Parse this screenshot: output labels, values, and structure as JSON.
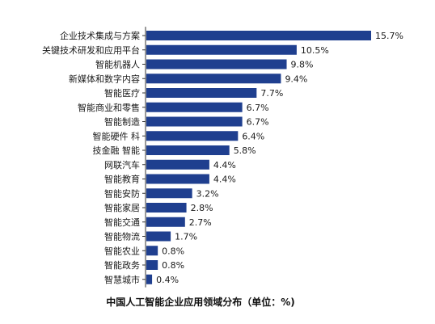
{
  "chart_data": {
    "type": "bar",
    "orientation": "horizontal",
    "title": "中国人工智能企业应用领域分布（单位：%)",
    "categories": [
      "企业技术集成与方案",
      "关键技术研发和应用平台",
      "智能机器人",
      "新媒体和数字内容",
      "智能医疗",
      "智能商业和零售",
      "智能制造",
      "智能硬件 科",
      "技金融 智能",
      "网联汽车",
      "智能教育",
      "智能安防",
      "智能家居",
      "智能交通",
      "智能物流",
      "智能农业",
      "智能政务",
      "智慧城市"
    ],
    "values": [
      15.7,
      10.5,
      9.8,
      9.4,
      7.7,
      6.7,
      6.7,
      6.4,
      5.8,
      4.4,
      4.4,
      3.2,
      2.8,
      2.7,
      1.7,
      0.8,
      0.8,
      0.4
    ],
    "value_labels": [
      "15.7%",
      "10.5%",
      "9.8%",
      "9.4%",
      "7.7%",
      "6.7%",
      "6.7%",
      "6.4%",
      "5.8%",
      "4.4%",
      "4.4%",
      "3.2%",
      "2.8%",
      "2.7%",
      "1.7%",
      "0.8%",
      "0.8%",
      "0.4%"
    ],
    "xlim": [
      0,
      15.7
    ],
    "bar_color": "#1f3f8f",
    "axis_color": "#333333",
    "grid": false,
    "legend": "none"
  }
}
